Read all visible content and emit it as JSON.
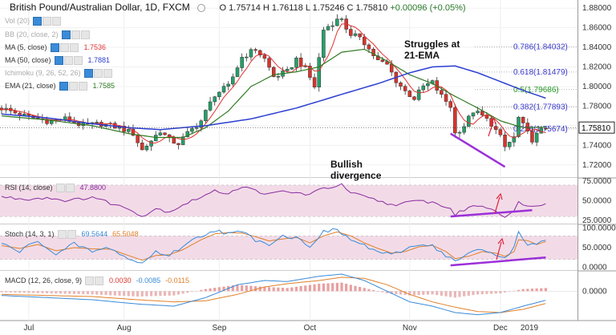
{
  "header": {
    "symbol": "British Pound/Australian Dollar, 1D, FXCM",
    "open": "O 1.75714",
    "high": "H 1.76118",
    "low": "L 1.75246",
    "close": "C 1.75810",
    "change": "+0.00096 (+0.05%)"
  },
  "legends": {
    "vol": "Vol (20)",
    "bb": "BB (20, close, 2)",
    "ma5": {
      "label": "MA (5, close)",
      "value": "1.7536"
    },
    "ma50": {
      "label": "MA (50, close)",
      "value": "1.7881"
    },
    "ichimoku": "Ichimoku (9, 26, 52, 26)",
    "ema21": {
      "label": "EMA (21, close)",
      "value": "1.7585"
    },
    "rsi": {
      "label": "RSI (14, close)",
      "value": "47.8800"
    },
    "stoch": {
      "label": "Stoch (14, 3, 1)",
      "k": "69.5644",
      "d": "65.5048"
    },
    "macd": {
      "label": "MACD (12, 26, close, 9)",
      "hist": "0.0030",
      "macd": "-0.0085",
      "signal": "-0.0115"
    }
  },
  "annotations": {
    "struggles": "Struggles at\n21-EMA",
    "bullish": "Bullish\ndivergence"
  },
  "colors": {
    "up": "#26a069",
    "down": "#d9342b",
    "ma5": "#e03030",
    "ma50": "#2c3fd0",
    "ema21": "#2f7a22",
    "rsi": "#8a2ba0",
    "stochK": "#3a8bd8",
    "stochD": "#e0802a",
    "div": "#9b30d8",
    "arrow": "#e0203a",
    "fib": "#3a3ad0",
    "fib05": "#2a9a2a",
    "panelBg": "#f2dbe7"
  },
  "chart_data": [
    {
      "type": "candlestick",
      "name": "price",
      "x_range": [
        0,
        120
      ],
      "ylim": [
        1.71,
        1.885
      ],
      "yticks": [
        "1.72000",
        "1.74000",
        "1.76000",
        "1.78000",
        "1.80000",
        "1.82000",
        "1.84000",
        "1.86000",
        "1.88000"
      ],
      "last_price": "1.75810",
      "xticks": [
        {
          "x": 6,
          "label": "Jul"
        },
        {
          "x": 27,
          "label": "Aug"
        },
        {
          "x": 48,
          "label": "Sep"
        },
        {
          "x": 68,
          "label": "Oct"
        },
        {
          "x": 90,
          "label": "Nov"
        },
        {
          "x": 110,
          "label": "Dec"
        },
        {
          "x": 130,
          "label": "2019"
        }
      ],
      "anchors": [
        [
          0,
          1.778
        ],
        [
          5,
          1.77
        ],
        [
          10,
          1.765
        ],
        [
          14,
          1.767
        ],
        [
          18,
          1.76
        ],
        [
          22,
          1.762
        ],
        [
          26,
          1.758
        ],
        [
          29,
          1.752
        ],
        [
          31,
          1.735
        ],
        [
          33,
          1.745
        ],
        [
          35,
          1.755
        ],
        [
          37,
          1.745
        ],
        [
          39,
          1.742
        ],
        [
          41,
          1.752
        ],
        [
          44,
          1.765
        ],
        [
          47,
          1.792
        ],
        [
          50,
          1.8
        ],
        [
          53,
          1.83
        ],
        [
          56,
          1.838
        ],
        [
          58,
          1.828
        ],
        [
          60,
          1.81
        ],
        [
          63,
          1.815
        ],
        [
          65,
          1.828
        ],
        [
          67,
          1.818
        ],
        [
          69,
          1.8
        ],
        [
          71,
          1.858
        ],
        [
          73,
          1.865
        ],
        [
          75,
          1.87
        ],
        [
          77,
          1.85
        ],
        [
          79,
          1.852
        ],
        [
          81,
          1.838
        ],
        [
          83,
          1.826
        ],
        [
          85,
          1.822
        ],
        [
          87,
          1.806
        ],
        [
          89,
          1.795
        ],
        [
          91,
          1.788
        ],
        [
          93,
          1.8
        ],
        [
          95,
          1.804
        ],
        [
          97,
          1.79
        ],
        [
          99,
          1.78
        ],
        [
          100,
          1.752
        ],
        [
          102,
          1.76
        ],
        [
          104,
          1.775
        ],
        [
          106,
          1.77
        ],
        [
          108,
          1.762
        ],
        [
          110,
          1.748
        ],
        [
          111,
          1.738
        ],
        [
          113,
          1.748
        ],
        [
          114,
          1.768
        ],
        [
          116,
          1.752
        ],
        [
          117,
          1.746
        ],
        [
          119,
          1.755
        ],
        [
          120,
          1.758
        ]
      ],
      "ma50_anchors": [
        [
          0,
          1.772
        ],
        [
          10,
          1.768
        ],
        [
          20,
          1.762
        ],
        [
          28,
          1.758
        ],
        [
          35,
          1.756
        ],
        [
          45,
          1.76
        ],
        [
          55,
          1.767
        ],
        [
          65,
          1.778
        ],
        [
          75,
          1.792
        ],
        [
          83,
          1.803
        ],
        [
          90,
          1.814
        ],
        [
          95,
          1.82
        ],
        [
          100,
          1.821
        ],
        [
          105,
          1.814
        ],
        [
          110,
          1.805
        ],
        [
          115,
          1.796
        ],
        [
          120,
          1.7881
        ]
      ],
      "ema21_anchors": [
        [
          0,
          1.77
        ],
        [
          10,
          1.766
        ],
        [
          20,
          1.76
        ],
        [
          28,
          1.752
        ],
        [
          34,
          1.748
        ],
        [
          40,
          1.748
        ],
        [
          45,
          1.758
        ],
        [
          50,
          1.775
        ],
        [
          55,
          1.8
        ],
        [
          60,
          1.812
        ],
        [
          65,
          1.815
        ],
        [
          70,
          1.82
        ],
        [
          75,
          1.835
        ],
        [
          80,
          1.838
        ],
        [
          85,
          1.826
        ],
        [
          90,
          1.812
        ],
        [
          95,
          1.803
        ],
        [
          100,
          1.79
        ],
        [
          105,
          1.778
        ],
        [
          110,
          1.765
        ],
        [
          115,
          1.758
        ],
        [
          120,
          1.7585
        ]
      ],
      "fib_levels": [
        {
          "value": 1.84032,
          "label": "0.786(1.84032)"
        },
        {
          "value": 1.81479,
          "label": "0.618(1.81479)"
        },
        {
          "value": 1.79686,
          "label": "0.5(1.79686)"
        },
        {
          "value": 1.77893,
          "label": "0.382(1.77893)"
        },
        {
          "value": 1.75674,
          "label": "0.236(1.75674)"
        }
      ],
      "divergence_line": {
        "from": [
          99,
          1.752
        ],
        "to": [
          111,
          1.718
        ]
      }
    },
    {
      "type": "line",
      "name": "RSI",
      "ylim": [
        22,
        75
      ],
      "band": [
        30,
        70
      ],
      "yticks": [
        "25.0000",
        "50.0000",
        "75.0000"
      ],
      "anchors": [
        [
          0,
          55
        ],
        [
          5,
          52
        ],
        [
          10,
          54
        ],
        [
          15,
          50
        ],
        [
          20,
          55
        ],
        [
          25,
          45
        ],
        [
          29,
          38
        ],
        [
          31,
          30
        ],
        [
          34,
          40
        ],
        [
          37,
          36
        ],
        [
          40,
          45
        ],
        [
          44,
          55
        ],
        [
          47,
          62
        ],
        [
          50,
          60
        ],
        [
          53,
          68
        ],
        [
          56,
          63
        ],
        [
          59,
          58
        ],
        [
          62,
          62
        ],
        [
          65,
          60
        ],
        [
          68,
          58
        ],
        [
          71,
          66
        ],
        [
          73,
          68
        ],
        [
          75,
          70
        ],
        [
          77,
          60
        ],
        [
          80,
          55
        ],
        [
          83,
          50
        ],
        [
          86,
          45
        ],
        [
          89,
          47
        ],
        [
          92,
          50
        ],
        [
          95,
          48
        ],
        [
          97,
          44
        ],
        [
          99,
          40
        ],
        [
          100,
          32
        ],
        [
          103,
          42
        ],
        [
          106,
          44
        ],
        [
          108,
          40
        ],
        [
          110,
          34
        ],
        [
          111,
          30
        ],
        [
          113,
          36
        ],
        [
          114,
          48
        ],
        [
          116,
          45
        ],
        [
          117,
          42
        ],
        [
          119,
          45
        ],
        [
          120,
          47.88
        ]
      ],
      "divergence_line": {
        "from": [
          99,
          30
        ],
        "to": [
          117,
          38
        ]
      }
    },
    {
      "type": "line",
      "name": "Stoch",
      "ylim": [
        -5,
        105
      ],
      "band": [
        20,
        80
      ],
      "yticks": [
        "0.0000",
        "50.0000",
        "100.0000"
      ],
      "k_anchors": [
        [
          0,
          60
        ],
        [
          4,
          40
        ],
        [
          8,
          70
        ],
        [
          12,
          30
        ],
        [
          16,
          60
        ],
        [
          20,
          40
        ],
        [
          24,
          50
        ],
        [
          28,
          20
        ],
        [
          31,
          10
        ],
        [
          34,
          40
        ],
        [
          37,
          30
        ],
        [
          40,
          55
        ],
        [
          44,
          80
        ],
        [
          47,
          95
        ],
        [
          50,
          85
        ],
        [
          53,
          90
        ],
        [
          56,
          70
        ],
        [
          59,
          60
        ],
        [
          62,
          80
        ],
        [
          65,
          75
        ],
        [
          68,
          55
        ],
        [
          71,
          90
        ],
        [
          74,
          95
        ],
        [
          77,
          70
        ],
        [
          80,
          55
        ],
        [
          83,
          40
        ],
        [
          86,
          30
        ],
        [
          89,
          45
        ],
        [
          92,
          60
        ],
        [
          95,
          55
        ],
        [
          98,
          30
        ],
        [
          100,
          15
        ],
        [
          103,
          35
        ],
        [
          106,
          45
        ],
        [
          109,
          30
        ],
        [
          111,
          25
        ],
        [
          113,
          50
        ],
        [
          114,
          90
        ],
        [
          116,
          60
        ],
        [
          118,
          55
        ],
        [
          120,
          69.56
        ]
      ],
      "d_anchors": [
        [
          0,
          55
        ],
        [
          4,
          48
        ],
        [
          8,
          58
        ],
        [
          12,
          42
        ],
        [
          16,
          50
        ],
        [
          20,
          47
        ],
        [
          24,
          46
        ],
        [
          28,
          30
        ],
        [
          31,
          18
        ],
        [
          34,
          30
        ],
        [
          37,
          32
        ],
        [
          40,
          45
        ],
        [
          44,
          70
        ],
        [
          47,
          85
        ],
        [
          50,
          88
        ],
        [
          53,
          87
        ],
        [
          56,
          78
        ],
        [
          59,
          67
        ],
        [
          62,
          72
        ],
        [
          65,
          76
        ],
        [
          68,
          62
        ],
        [
          71,
          80
        ],
        [
          74,
          90
        ],
        [
          77,
          80
        ],
        [
          80,
          62
        ],
        [
          83,
          48
        ],
        [
          86,
          36
        ],
        [
          89,
          40
        ],
        [
          92,
          52
        ],
        [
          95,
          56
        ],
        [
          98,
          40
        ],
        [
          100,
          22
        ],
        [
          103,
          28
        ],
        [
          106,
          40
        ],
        [
          109,
          36
        ],
        [
          111,
          28
        ],
        [
          113,
          40
        ],
        [
          114,
          70
        ],
        [
          116,
          68
        ],
        [
          118,
          58
        ],
        [
          120,
          65.5
        ]
      ],
      "divergence_line": {
        "from": [
          99,
          5
        ],
        "to": [
          120,
          25
        ]
      }
    },
    {
      "type": "bar",
      "name": "MACD",
      "ylim": [
        -0.026,
        0.016
      ],
      "yticks": [
        "0.0000"
      ],
      "hist_anchors": [
        [
          0,
          -0.001
        ],
        [
          10,
          -0.002
        ],
        [
          20,
          -0.003
        ],
        [
          30,
          -0.005
        ],
        [
          38,
          -0.004
        ],
        [
          45,
          0.002
        ],
        [
          52,
          0.006
        ],
        [
          58,
          0.004
        ],
        [
          63,
          0.003
        ],
        [
          70,
          0.007
        ],
        [
          75,
          0.008
        ],
        [
          80,
          0.003
        ],
        [
          85,
          -0.002
        ],
        [
          90,
          -0.004
        ],
        [
          95,
          -0.003
        ],
        [
          100,
          -0.006
        ],
        [
          105,
          -0.003
        ],
        [
          110,
          -0.002
        ],
        [
          115,
          0.002
        ],
        [
          120,
          0.003
        ]
      ],
      "macd_anchors": [
        [
          0,
          -0.004
        ],
        [
          10,
          -0.006
        ],
        [
          20,
          -0.008
        ],
        [
          30,
          -0.012
        ],
        [
          38,
          -0.014
        ],
        [
          45,
          -0.006
        ],
        [
          52,
          0.006
        ],
        [
          58,
          0.01
        ],
        [
          63,
          0.009
        ],
        [
          70,
          0.014
        ],
        [
          75,
          0.016
        ],
        [
          80,
          0.01
        ],
        [
          85,
          0.0
        ],
        [
          90,
          -0.01
        ],
        [
          95,
          -0.014
        ],
        [
          100,
          -0.02
        ],
        [
          105,
          -0.022
        ],
        [
          110,
          -0.02
        ],
        [
          115,
          -0.014
        ],
        [
          120,
          -0.0085
        ]
      ],
      "signal_anchors": [
        [
          0,
          -0.003
        ],
        [
          10,
          -0.004
        ],
        [
          20,
          -0.005
        ],
        [
          30,
          -0.008
        ],
        [
          38,
          -0.01
        ],
        [
          45,
          -0.009
        ],
        [
          52,
          -0.003
        ],
        [
          58,
          0.004
        ],
        [
          63,
          0.007
        ],
        [
          70,
          0.01
        ],
        [
          75,
          0.013
        ],
        [
          80,
          0.012
        ],
        [
          85,
          0.006
        ],
        [
          90,
          -0.003
        ],
        [
          95,
          -0.01
        ],
        [
          100,
          -0.015
        ],
        [
          105,
          -0.019
        ],
        [
          110,
          -0.02
        ],
        [
          115,
          -0.017
        ],
        [
          120,
          -0.0115
        ]
      ]
    }
  ]
}
